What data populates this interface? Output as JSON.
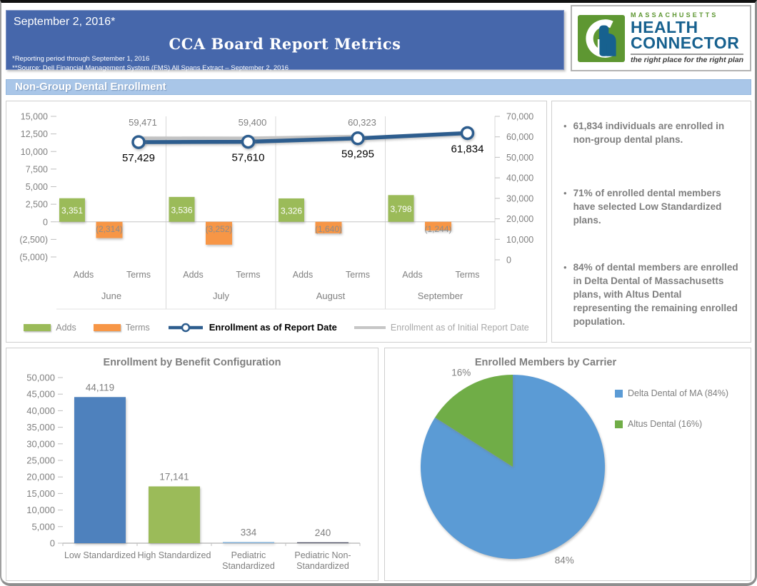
{
  "header": {
    "date": "September 2, 2016*",
    "title": "CCA Board Report Metrics",
    "footnote1": "*Reporting period through September 1, 2016",
    "footnote2": "**Source: Dell Financial Management System (FMS) All Spans Extract – September 2, 2016",
    "banner_color": "#4667ab"
  },
  "logo": {
    "region": "MASSACHUSETTS",
    "name_line1": "HEALTH",
    "name_line2": "CONNECTOR",
    "tagline": "the right place for the right plan",
    "green": "#5e9732",
    "blue": "#17618f"
  },
  "section": {
    "title": "Non-Group Dental Enrollment",
    "bg_color": "#a9c6e8"
  },
  "bullets": [
    "61,834 individuals are enrolled in non-group dental plans.",
    "71% of enrolled dental members have selected Low Standardized plans.",
    "84% of dental members are enrolled in Delta Dental of Massachusetts plans, with Altus Dental representing the remaining enrolled population."
  ],
  "chart_data": [
    {
      "type": "combo_bar_line",
      "categories": [
        "June",
        "July",
        "August",
        "September"
      ],
      "sub_categories": [
        "Adds",
        "Terms"
      ],
      "bar_series": [
        {
          "name": "Adds",
          "color": "#9bbb59",
          "values": [
            3351,
            3536,
            3326,
            3798
          ],
          "labels": [
            "3,351",
            "3,536",
            "3,326",
            "3,798"
          ]
        },
        {
          "name": "Terms",
          "color": "#f79646",
          "values": [
            -2314,
            -3252,
            -1640,
            -1244
          ],
          "labels": [
            "(2,314)",
            "(3,252)",
            "(1,640)",
            "(1,244)"
          ]
        }
      ],
      "line_series": [
        {
          "name": "Enrollment as of Initial Report Date",
          "color": "#c3c3c3",
          "values": [
            59471,
            59400,
            60323,
            null
          ],
          "labels": [
            "59,471",
            "59,400",
            "60,323",
            ""
          ],
          "label_color": "#808080",
          "marker": false
        },
        {
          "name": "Enrollment as of Report Date",
          "color": "#2d5d8e",
          "values": [
            57429,
            57610,
            59295,
            61834
          ],
          "labels": [
            "57,429",
            "57,610",
            "59,295",
            "61,834"
          ],
          "label_color": "#000000",
          "marker": true
        }
      ],
      "left_axis": {
        "min": -5000,
        "max": 15000,
        "step": 2500,
        "ticks": [
          "15,000",
          "12,500",
          "10,000",
          "7,500",
          "5,000",
          "2,500",
          "0",
          "(2,500)",
          "(5,000)"
        ]
      },
      "right_axis": {
        "min": 0,
        "max": 70000,
        "step": 10000,
        "ticks": [
          "70,000",
          "60,000",
          "50,000",
          "40,000",
          "30,000",
          "20,000",
          "10,000",
          "0"
        ]
      }
    },
    {
      "type": "bar",
      "title": "Enrollment by Benefit Configuration",
      "categories": [
        "Low Standardized",
        "High Standardized",
        "Pediatric\nStandardized",
        "Pediatric Non-\nStandardized"
      ],
      "values": [
        44119,
        17141,
        334,
        240
      ],
      "labels": [
        "44,119",
        "17,141",
        "334",
        "240"
      ],
      "colors": [
        "#4e81bd",
        "#9bbb59",
        "#85b2d8",
        "#4c4f63"
      ],
      "ylim": [
        0,
        50000
      ],
      "ytick_step": 5000,
      "yticks": [
        "50,000",
        "45,000",
        "40,000",
        "35,000",
        "30,000",
        "25,000",
        "20,000",
        "15,000",
        "10,000",
        "5,000",
        "0"
      ]
    },
    {
      "type": "pie",
      "title": "Enrolled Members by Carrier",
      "slices": [
        {
          "label": "Delta Dental of MA (84%)",
          "pct": 84,
          "color": "#5b9bd5",
          "callout": "84%"
        },
        {
          "label": "Altus Dental (16%)",
          "pct": 16,
          "color": "#70ad47",
          "callout": "16%"
        }
      ]
    }
  ]
}
